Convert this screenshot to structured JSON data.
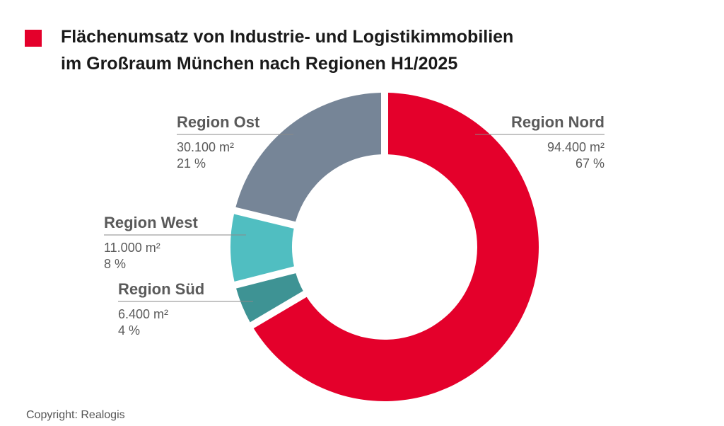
{
  "title": {
    "line1": "Flächenumsatz von Industrie- und Logistikimmobilien",
    "line2": "im Großraum München nach Regionen H1/2025",
    "marker_color": "#e4002b"
  },
  "copyright": "Copyright: Realogis",
  "chart_data": {
    "type": "pie",
    "style": "donut",
    "title": "Flächenumsatz von Industrie- und Logistikimmobilien im Großraum München nach Regionen H1/2025",
    "categories": [
      "Region Nord",
      "Region Süd",
      "Region West",
      "Region Ost"
    ],
    "values": [
      94400,
      6400,
      11000,
      30100
    ],
    "value_labels": [
      "94.400 m²",
      "6.400 m²",
      "11.000 m²",
      "30.100 m²"
    ],
    "percent_labels": [
      "67 %",
      "4 %",
      "8 %",
      "21 %"
    ],
    "colors": [
      "#e4002b",
      "#3e9394",
      "#50bec1",
      "#768597"
    ],
    "legend": "none"
  }
}
